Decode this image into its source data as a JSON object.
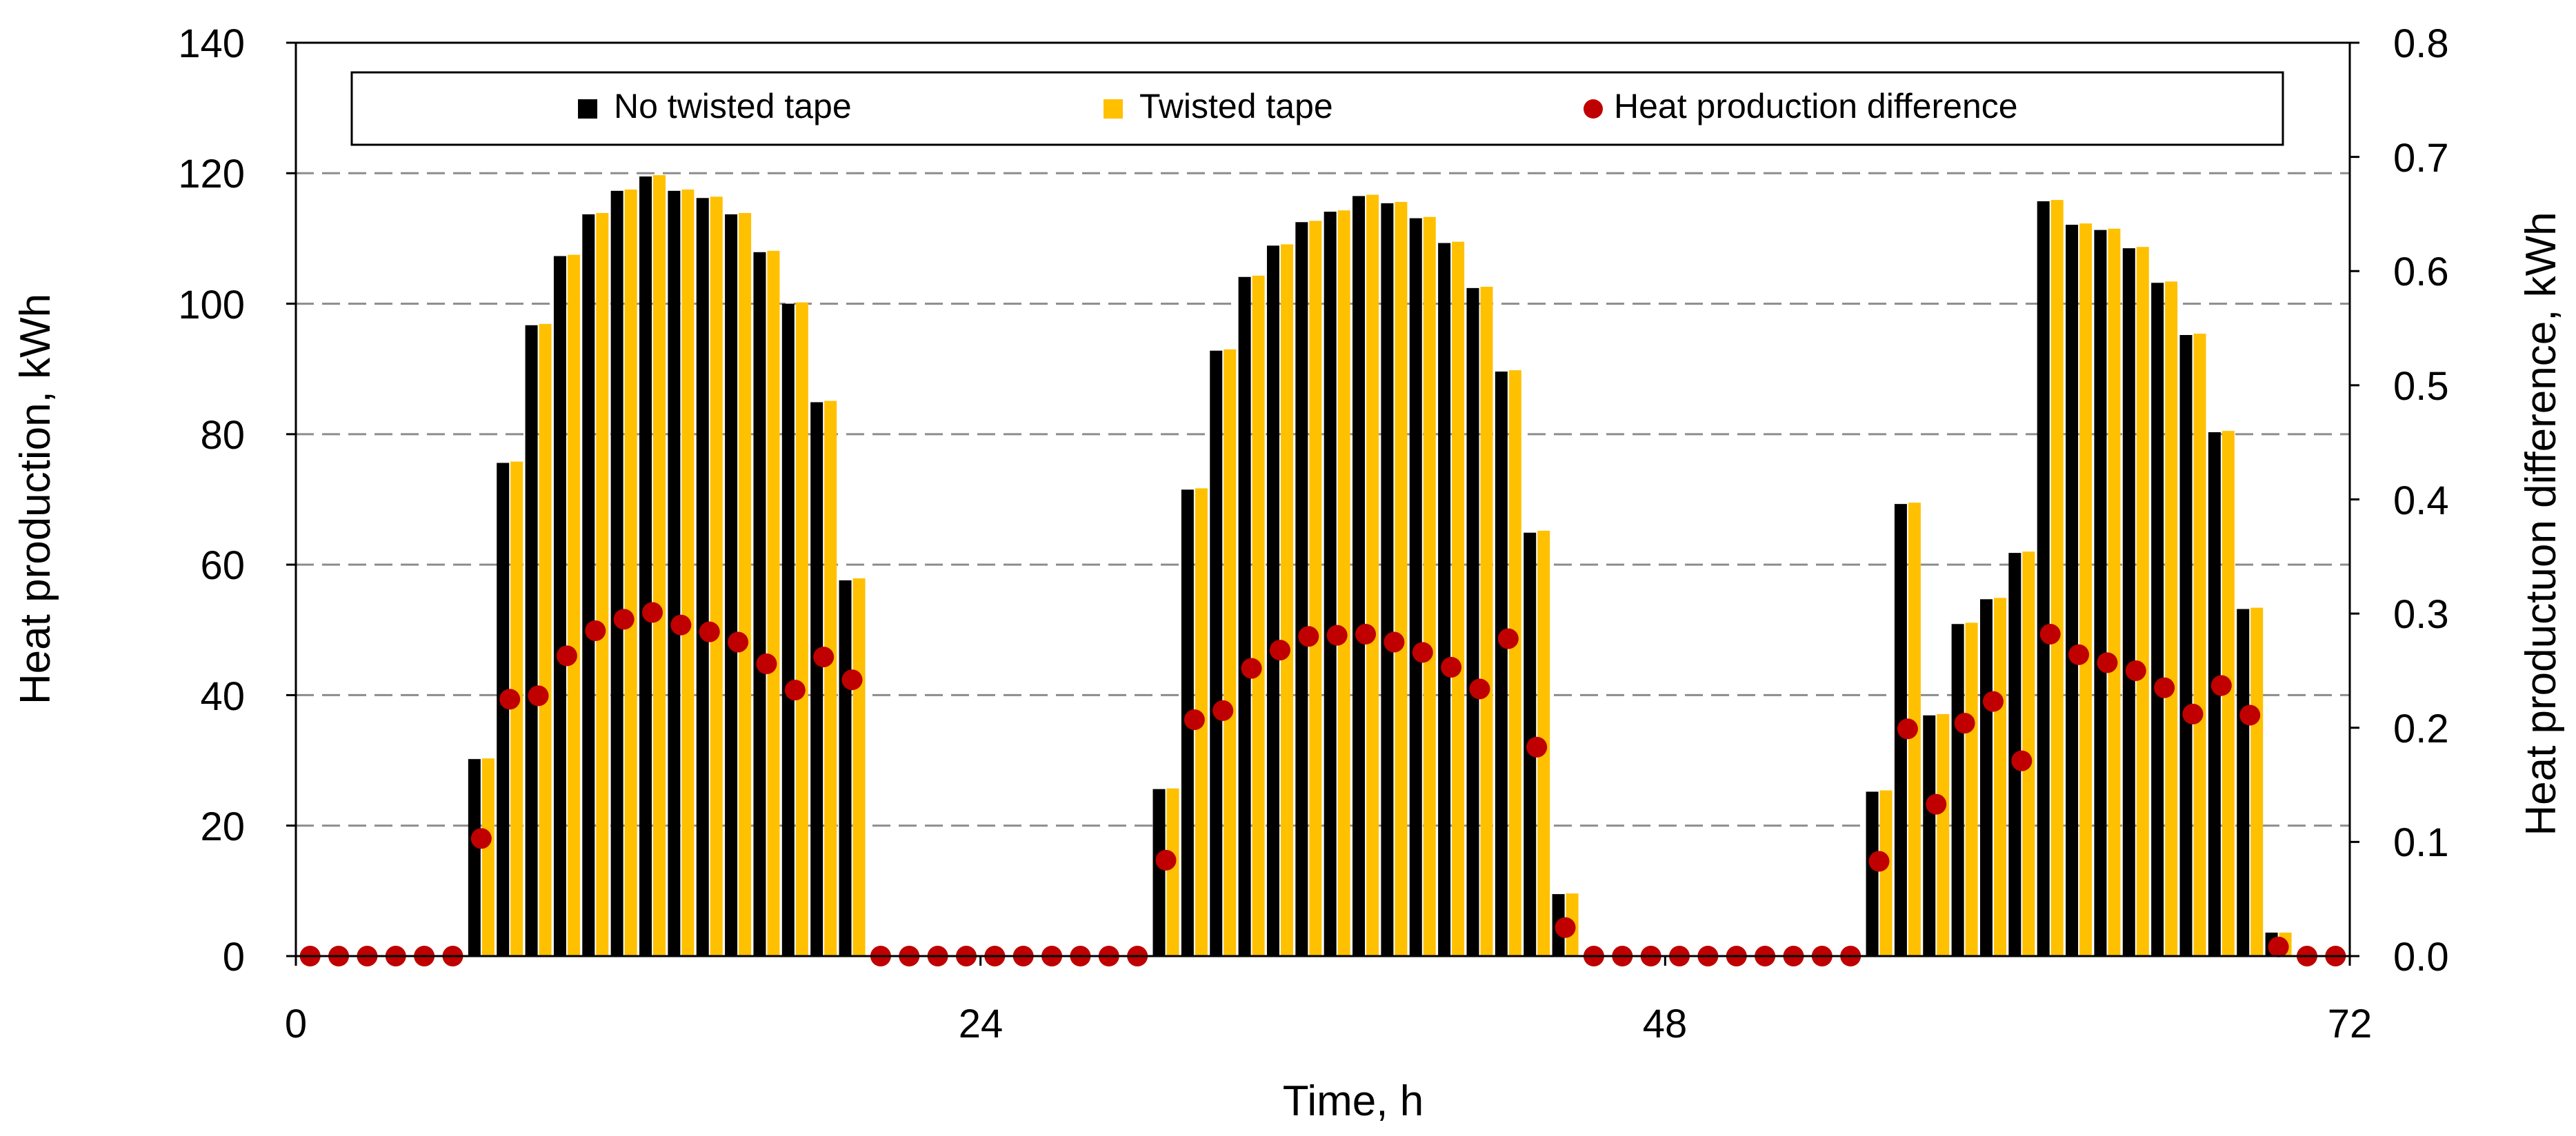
{
  "chart_data": {
    "type": "bar",
    "title": "",
    "xlabel": "Time, h",
    "ylabel": "Heat production, kWh",
    "y2label": "Heat productuon difference, kWh",
    "xlim": [
      0,
      72
    ],
    "ylim": [
      0,
      140
    ],
    "y2lim": [
      0,
      0.8
    ],
    "x_ticks": [
      "0",
      "24",
      "48",
      "72"
    ],
    "y_ticks": [
      "0",
      "20",
      "40",
      "60",
      "80",
      "100",
      "120",
      "140"
    ],
    "y2_ticks": [
      "0.0",
      "0.1",
      "0.2",
      "0.3",
      "0.4",
      "0.5",
      "0.6",
      "0.7",
      "0.8"
    ],
    "grid": "horizontal dashed",
    "legend_position": "top",
    "x": [
      0.5,
      1.5,
      2.5,
      3.5,
      4.5,
      5.5,
      6.5,
      7.5,
      8.5,
      9.5,
      10.5,
      11.5,
      12.5,
      13.5,
      14.5,
      15.5,
      16.5,
      17.5,
      18.5,
      19.5,
      20.5,
      21.5,
      22.5,
      23.5,
      24.5,
      25.5,
      26.5,
      27.5,
      28.5,
      29.5,
      30.5,
      31.5,
      32.5,
      33.5,
      34.5,
      35.5,
      36.5,
      37.5,
      38.5,
      39.5,
      40.5,
      41.5,
      42.5,
      43.5,
      44.5,
      45.5,
      46.5,
      47.5,
      48.5,
      49.5,
      50.5,
      51.5,
      52.5,
      53.5,
      54.5,
      55.5,
      56.5,
      57.5,
      58.5,
      59.5,
      60.5,
      61.5,
      62.5,
      63.5,
      64.5,
      65.5,
      66.5,
      67.5,
      68.5,
      69.5,
      70.5,
      71.5
    ],
    "series": [
      {
        "name": "No twisted tape",
        "color": "#000000",
        "axis": "left",
        "kind": "bar",
        "values": [
          0,
          0,
          0,
          0,
          0,
          0,
          30.2,
          75.6,
          96.7,
          107.3,
          113.7,
          117.3,
          119.5,
          117.3,
          116.2,
          113.7,
          107.9,
          100.0,
          84.9,
          57.6,
          0,
          0,
          0,
          0,
          0,
          0,
          0,
          0,
          0,
          0,
          25.6,
          71.5,
          92.8,
          104.1,
          108.9,
          112.5,
          114.1,
          116.5,
          115.4,
          113.1,
          109.3,
          102.4,
          89.6,
          64.9,
          9.5,
          0,
          0,
          0,
          0,
          0,
          0,
          0,
          0,
          0,
          0,
          25.2,
          69.3,
          36.9,
          50.9,
          54.7,
          61.8,
          115.7,
          112.1,
          111.3,
          108.5,
          103.2,
          95.2,
          80.3,
          53.2,
          3.6,
          0,
          0
        ]
      },
      {
        "name": "Twisted tape",
        "color": "#FFC000",
        "axis": "left",
        "kind": "bar",
        "values": [
          0,
          0,
          0,
          0,
          0,
          0,
          30.3,
          75.8,
          96.9,
          107.5,
          113.9,
          117.5,
          119.7,
          117.5,
          116.4,
          113.9,
          108.1,
          100.2,
          85.1,
          57.9,
          0,
          0,
          0,
          0,
          0,
          0,
          0,
          0,
          0,
          0,
          25.7,
          71.7,
          93.0,
          104.3,
          109.1,
          112.7,
          114.3,
          116.7,
          115.6,
          113.3,
          109.5,
          102.6,
          89.8,
          65.2,
          9.6,
          0,
          0,
          0,
          0,
          0,
          0,
          0,
          0,
          0,
          0,
          25.4,
          69.5,
          37.1,
          51.1,
          54.9,
          62.0,
          115.9,
          112.3,
          111.5,
          108.7,
          103.4,
          95.4,
          80.5,
          53.4,
          3.6,
          0,
          0
        ]
      },
      {
        "name": "Heat production difference",
        "color": "#C00000",
        "axis": "right",
        "kind": "scatter",
        "values": [
          0,
          0,
          0,
          0,
          0,
          0,
          0.103,
          0.225,
          0.228,
          0.263,
          0.285,
          0.295,
          0.301,
          0.29,
          0.284,
          0.275,
          0.256,
          0.233,
          0.262,
          0.242,
          0,
          0,
          0,
          0,
          0,
          0,
          0,
          0,
          0,
          0,
          0.084,
          0.207,
          0.215,
          0.252,
          0.268,
          0.28,
          0.281,
          0.282,
          0.275,
          0.266,
          0.253,
          0.234,
          0.278,
          0.183,
          0.025,
          0,
          0,
          0,
          0,
          0,
          0,
          0,
          0,
          0,
          0,
          0.083,
          0.199,
          0.133,
          0.204,
          0.223,
          0.171,
          0.282,
          0.264,
          0.257,
          0.25,
          0.235,
          0.212,
          0.237,
          0.211,
          0.008,
          0,
          0
        ]
      }
    ]
  }
}
